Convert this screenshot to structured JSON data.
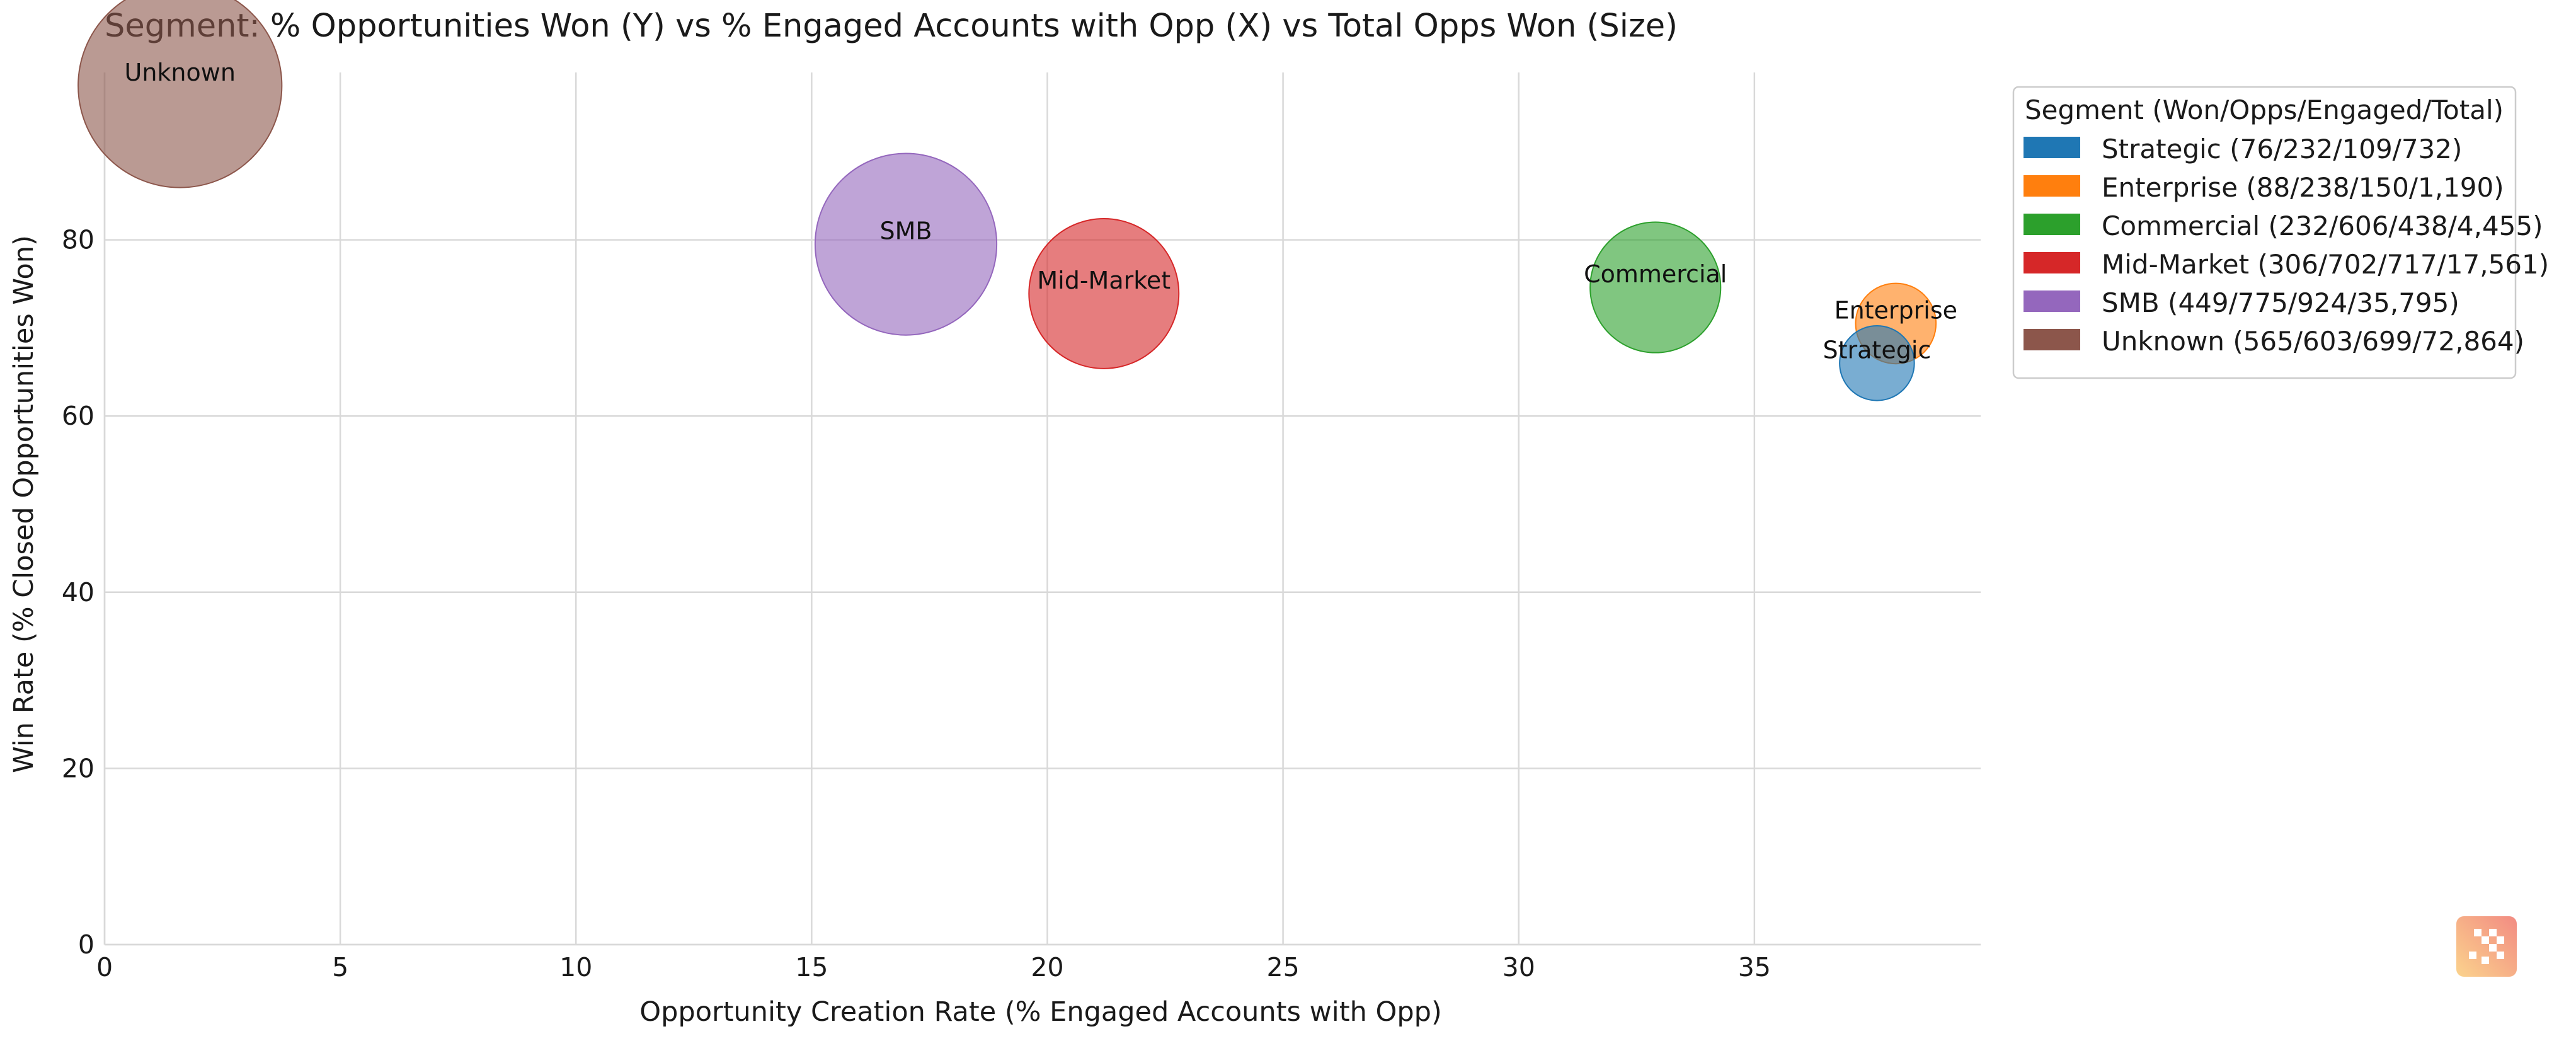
{
  "chart_data": {
    "type": "scatter",
    "title": "Segment: % Opportunities Won (Y) vs % Engaged Accounts with Opp (X) vs Total Opps Won (Size)",
    "xlabel": "Opportunity Creation Rate (% Engaged Accounts with Opp)",
    "ylabel": "Win Rate (% Closed Opportunities Won)",
    "xlim": [
      0,
      39.8
    ],
    "ylim": [
      0,
      99
    ],
    "xticks": [
      0,
      5,
      10,
      15,
      20,
      25,
      30,
      35
    ],
    "yticks": [
      0,
      20,
      40,
      60,
      80
    ],
    "grid": true,
    "legend": {
      "title": "Segment (Won/Opps/Engaged/Total)",
      "placement": "outside-top-right"
    },
    "series": [
      {
        "name": "Strategic",
        "legend_label": "Strategic (76/232/109/732)",
        "x": 37.6,
        "y": 66.0,
        "size": 76,
        "color": "#1f77b4"
      },
      {
        "name": "Enterprise",
        "legend_label": "Enterprise (88/238/150/1,190)",
        "x": 38.0,
        "y": 70.5,
        "size": 88,
        "color": "#ff7f0e"
      },
      {
        "name": "Commercial",
        "legend_label": "Commercial (232/606/438/4,455)",
        "x": 32.9,
        "y": 74.6,
        "size": 232,
        "color": "#2ca02c"
      },
      {
        "name": "Mid-Market",
        "legend_label": "Mid-Market (306/702/717/17,561)",
        "x": 21.2,
        "y": 73.9,
        "size": 306,
        "color": "#d62728"
      },
      {
        "name": "SMB",
        "legend_label": "SMB (449/775/924/35,795)",
        "x": 17.0,
        "y": 79.5,
        "size": 449,
        "color": "#9467bd"
      },
      {
        "name": "Unknown",
        "legend_label": "Unknown (565/603/699/72,864)",
        "x": 1.6,
        "y": 97.5,
        "size": 565,
        "color": "#8c564b"
      }
    ]
  }
}
